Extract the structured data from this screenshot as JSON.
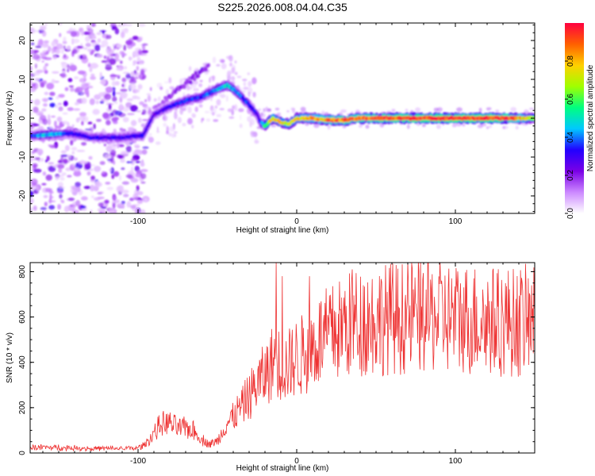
{
  "figure_title": "S225.2026.008.04.04.C35",
  "chart_data": [
    {
      "type": "heatmap",
      "title": "S225.2026.008.04.04.C35",
      "xlabel": "Height of straight line (km)",
      "ylabel": "Frequency (Hz)",
      "xlim": [
        -168,
        150
      ],
      "ylim": [
        -24.5,
        24.5
      ],
      "xticks": [
        -100,
        0,
        100
      ],
      "yticks": [
        -20,
        -10,
        0,
        10,
        20
      ],
      "colorbar": {
        "label": "Normalized spectral amplitude",
        "range": [
          0,
          1
        ],
        "ticks": [
          0.0,
          0.2,
          0.4,
          0.6,
          0.8
        ],
        "colormap": [
          "#ffffff",
          "#cc88ff",
          "#7a00e6",
          "#2200ff",
          "#00c8ff",
          "#00ff80",
          "#a0ff00",
          "#ffd000",
          "#ff6000",
          "#ff0040"
        ]
      },
      "ridge": {
        "x": [
          -168,
          -160,
          -150,
          -140,
          -130,
          -120,
          -110,
          -100,
          -97,
          -90,
          -80,
          -70,
          -60,
          -50,
          -44,
          -40,
          -35,
          -30,
          -25,
          -23,
          -20,
          -15,
          -10,
          -5,
          0,
          10,
          20,
          30,
          40,
          50,
          60,
          70,
          80,
          90,
          100,
          110,
          120,
          130,
          140,
          150
        ],
        "y": [
          -4.5,
          -4.3,
          -4.0,
          -4.0,
          -5.0,
          -5.0,
          -5.0,
          -4.5,
          -4.5,
          1.0,
          3.0,
          4.5,
          5.5,
          7.5,
          8.5,
          7.5,
          5.5,
          3.5,
          1.0,
          -1.0,
          -2.0,
          0.0,
          -1.0,
          -1.5,
          0.0,
          0.0,
          -0.5,
          -0.5,
          0.0,
          0.0,
          0.0,
          0.0,
          0.0,
          0.0,
          0.0,
          0.0,
          0.0,
          0.0,
          0.0,
          0.0
        ],
        "amplitude": [
          0.3,
          0.45,
          0.4,
          0.3,
          0.3,
          0.3,
          0.3,
          0.3,
          0.3,
          0.25,
          0.3,
          0.35,
          0.35,
          0.42,
          0.48,
          0.42,
          0.38,
          0.35,
          0.3,
          0.3,
          0.6,
          0.75,
          0.75,
          0.7,
          0.75,
          0.8,
          0.85,
          0.9,
          0.9,
          0.92,
          0.95,
          0.95,
          0.96,
          0.97,
          0.97,
          0.97,
          0.97,
          0.95,
          0.85,
          0.6
        ]
      },
      "secondary_ridge": {
        "x": [
          -90,
          -80,
          -70,
          -60,
          -55
        ],
        "y": [
          2.0,
          6.0,
          9.0,
          12.0,
          14.0
        ],
        "amplitude": [
          0.15,
          0.18,
          0.2,
          0.22,
          0.2
        ]
      }
    },
    {
      "type": "line",
      "title": "",
      "xlabel": "Height of straight line (km)",
      "ylabel": "SNR (10 * v/v)",
      "xlim": [
        -168,
        150
      ],
      "ylim": [
        0,
        840
      ],
      "xticks": [
        -100,
        0,
        100
      ],
      "yticks": [
        0,
        200,
        400,
        600,
        800
      ],
      "color": "#ee3333",
      "series": [
        {
          "name": "SNR",
          "x": [
            -168,
            -160,
            -150,
            -140,
            -130,
            -120,
            -110,
            -100,
            -95,
            -90,
            -85,
            -80,
            -75,
            -70,
            -65,
            -60,
            -55,
            -50,
            -45,
            -40,
            -35,
            -30,
            -25,
            -22,
            -20,
            -15,
            -13,
            -10,
            -5,
            0,
            5,
            10,
            15,
            20,
            25,
            30,
            40,
            50,
            60,
            70,
            80,
            90,
            100,
            110,
            120,
            130,
            140,
            150
          ],
          "values": [
            25,
            25,
            24,
            22,
            20,
            20,
            20,
            22,
            40,
            90,
            130,
            130,
            110,
            110,
            100,
            60,
            40,
            50,
            120,
            160,
            200,
            250,
            300,
            330,
            340,
            400,
            430,
            370,
            390,
            420,
            440,
            470,
            500,
            520,
            540,
            560,
            580,
            590,
            595,
            600,
            600,
            600,
            595,
            590,
            585,
            580,
            580,
            585
          ]
        }
      ],
      "spikes": [
        {
          "x": -13,
          "value": 840
        },
        {
          "x": -9,
          "value": 780
        },
        {
          "x": 8,
          "value": 780
        },
        {
          "x": 35,
          "value": 810
        },
        {
          "x": 148,
          "value": 740
        }
      ]
    }
  ]
}
